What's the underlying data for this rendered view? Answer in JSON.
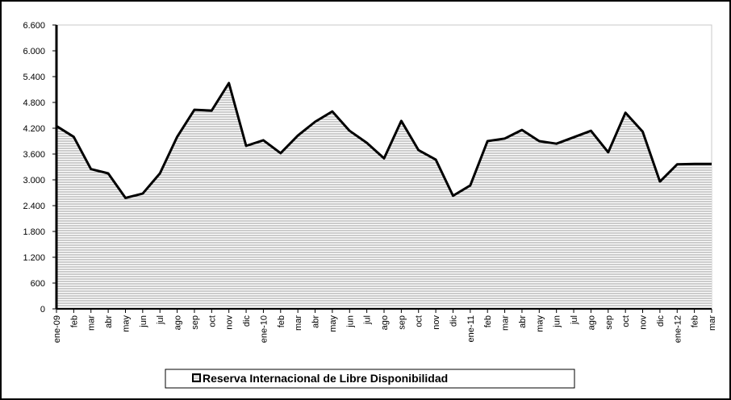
{
  "chart_data": {
    "type": "area",
    "categories": [
      "ene-09",
      "feb",
      "mar",
      "abr",
      "may",
      "jun",
      "jul",
      "ago",
      "sep",
      "oct",
      "nov",
      "dic",
      "ene-10",
      "feb",
      "mar",
      "abr",
      "may",
      "jun",
      "jul",
      "ago",
      "sep",
      "oct",
      "nov",
      "dic",
      "ene-11",
      "feb",
      "mar",
      "abr",
      "may",
      "jun",
      "jul",
      "ago",
      "sep",
      "oct",
      "nov",
      "dic",
      "ene-12",
      "feb",
      "mar"
    ],
    "series": [
      {
        "name": "Reserva Internacional de Libre Disponibilidad",
        "color": "#000000",
        "values": [
          4250,
          4000,
          3250,
          3150,
          2580,
          2680,
          3150,
          4000,
          4630,
          4610,
          5250,
          3790,
          3920,
          3620,
          4030,
          4350,
          4590,
          4140,
          3860,
          3500,
          4370,
          3690,
          3470,
          2630,
          2870,
          3900,
          3960,
          4160,
          3900,
          3840,
          3990,
          4140,
          3640,
          4560,
          4120,
          2960,
          3360,
          3370,
          3370
        ]
      }
    ],
    "ylim": [
      0,
      6600
    ],
    "yticks": [
      0,
      600,
      {
        "value": 1200,
        "label": "1.200"
      },
      {
        "value": 1800,
        "label": "1.800"
      },
      {
        "value": 2400,
        "label": "2.400"
      },
      {
        "value": 3000,
        "label": "3.000"
      },
      {
        "value": 3600,
        "label": "3.600"
      },
      {
        "value": 4200,
        "label": "4.200"
      },
      {
        "value": 4800,
        "label": "4.800"
      },
      {
        "value": 5400,
        "label": "5.400"
      },
      {
        "value": 6000,
        "label": "6.000"
      },
      {
        "value": 6600,
        "label": "6.600"
      }
    ],
    "legend": "bottom"
  }
}
